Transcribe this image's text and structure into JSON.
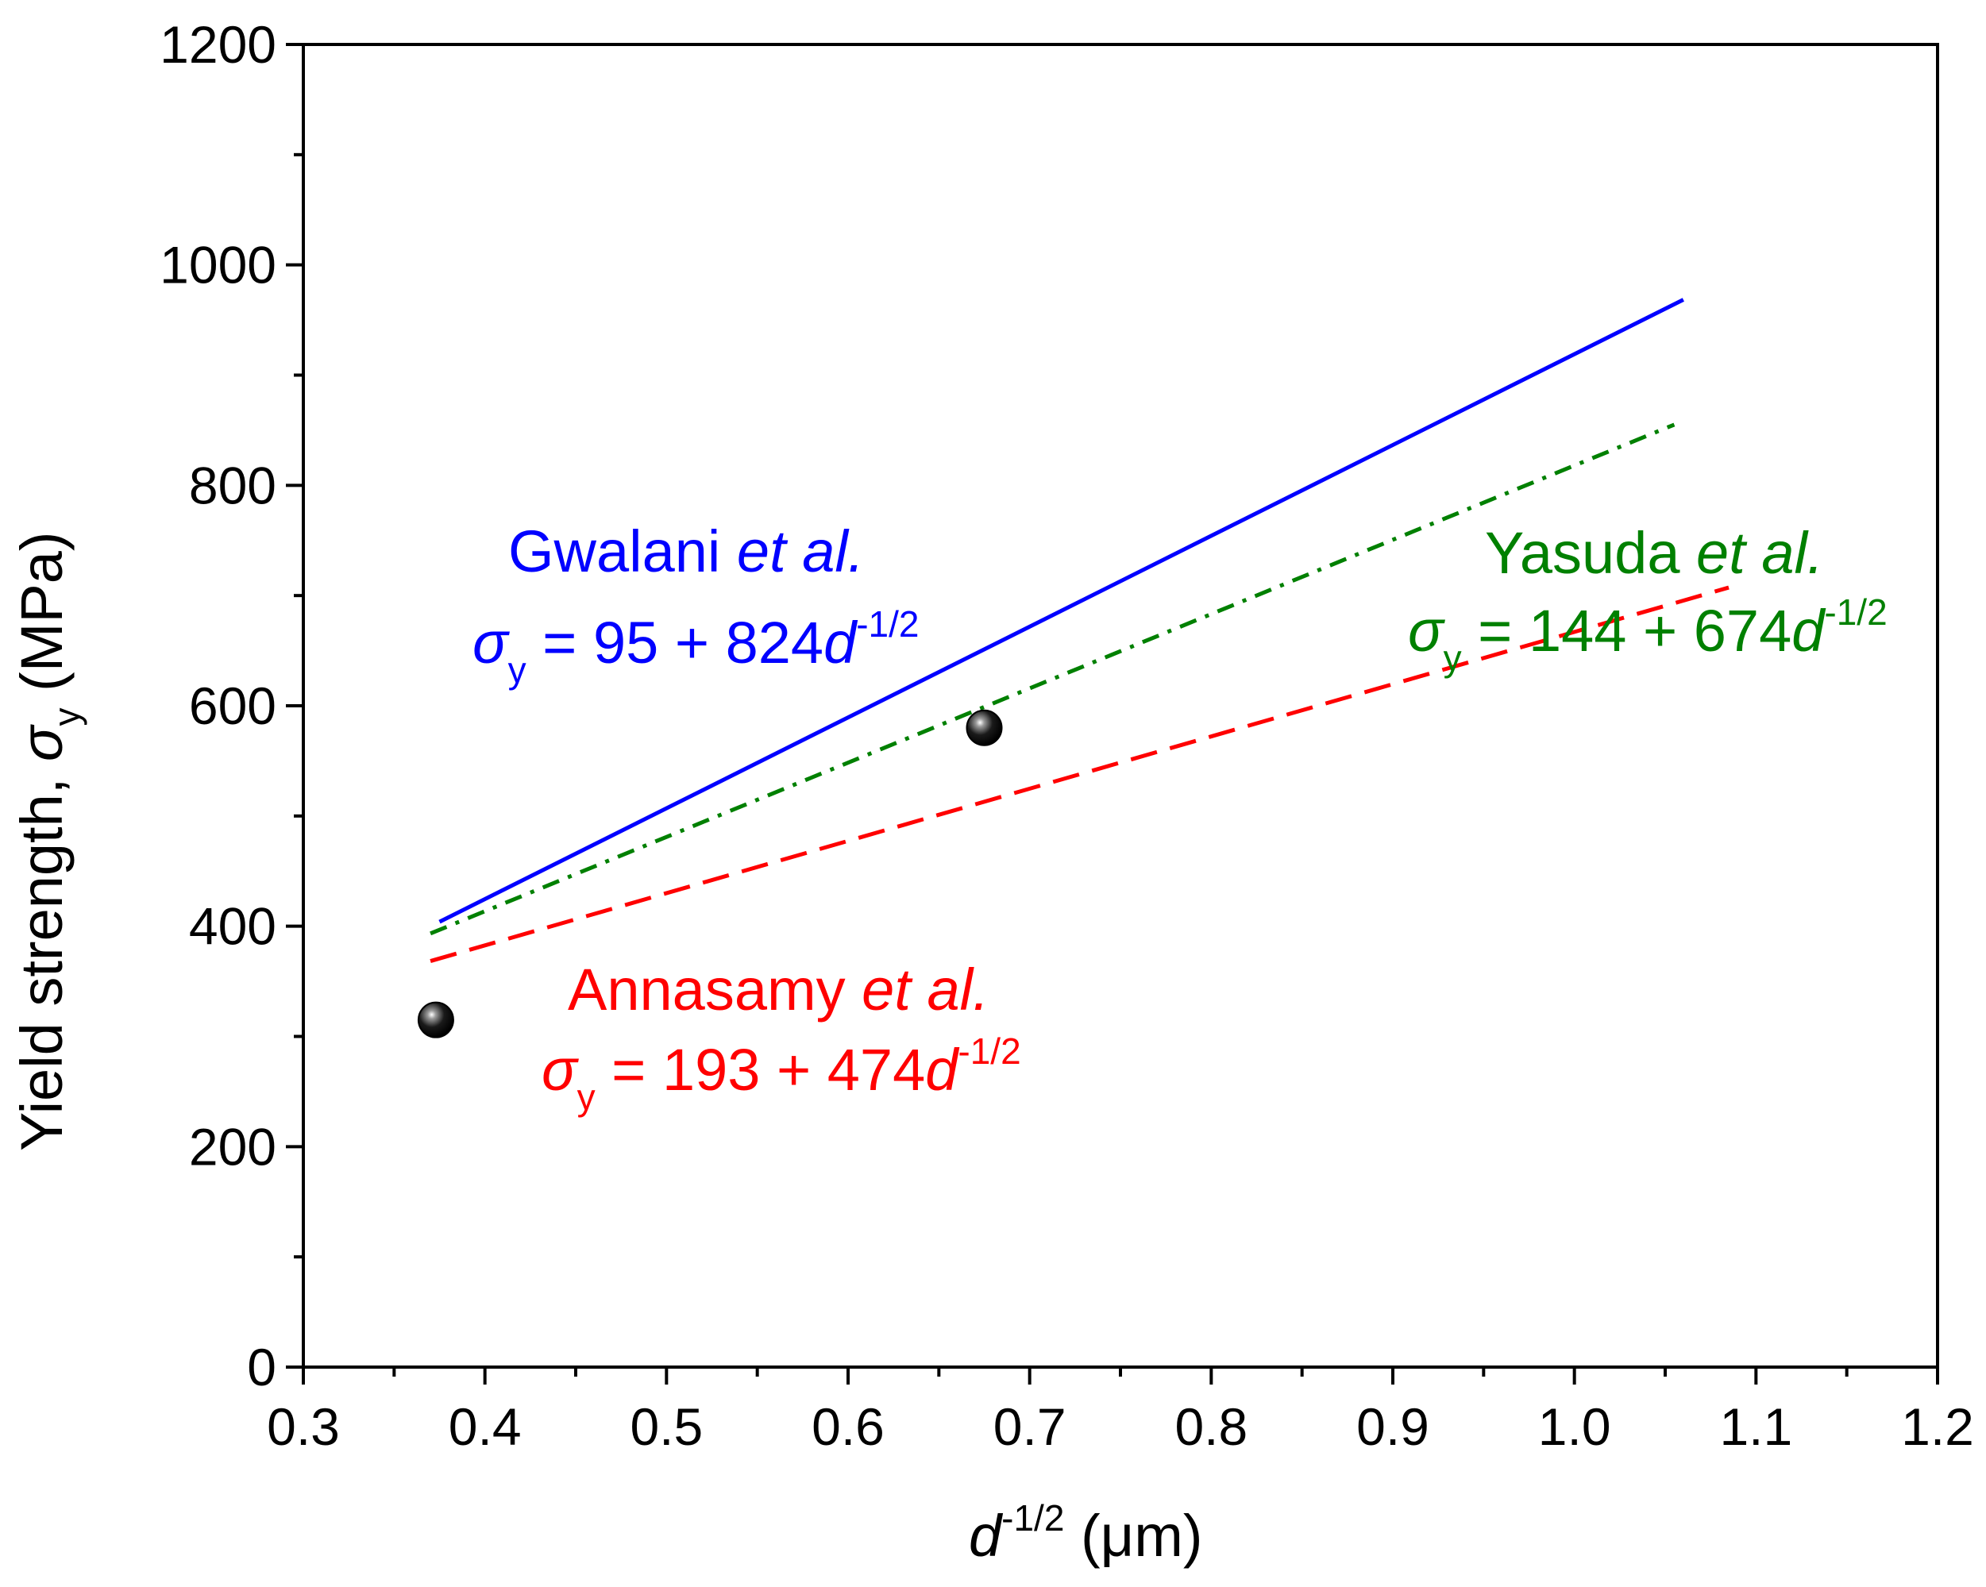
{
  "chart_data": {
    "type": "line",
    "title": "",
    "xlabel": {
      "main": "d",
      "sup": "-1/2",
      "unit": " (μm)"
    },
    "ylabel": {
      "main": "Yield strength, ",
      "sigma": "σ",
      "sub": "y",
      "unit": " (MPa)"
    },
    "xlim": [
      0.3,
      1.2
    ],
    "ylim": [
      0,
      1200
    ],
    "xticks": [
      "0.3",
      "0.4",
      "0.5",
      "0.6",
      "0.7",
      "0.8",
      "0.9",
      "1.0",
      "1.1",
      "1.2"
    ],
    "yticks": [
      "0",
      "200",
      "400",
      "600",
      "800",
      "1000",
      "1200"
    ],
    "xtick_values": [
      0.3,
      0.4,
      0.5,
      0.6,
      0.7,
      0.8,
      0.9,
      1.0,
      1.1,
      1.2
    ],
    "ytick_values": [
      0,
      200,
      400,
      600,
      800,
      1000,
      1200
    ],
    "x_minor_step": 0.05,
    "y_minor_step": 100,
    "grid": false,
    "series": [
      {
        "id": "gwalani",
        "name": "Gwalani",
        "name_suffix": " et al.",
        "style": "solid",
        "color": "#0000ff",
        "intercept": 95,
        "slope": 824,
        "x_range": [
          0.375,
          1.06
        ],
        "eq_sigma": "σ",
        "eq_sub": "y",
        "eq_text": " = 95 + 824",
        "eq_d": "d",
        "eq_sup": "-1/2"
      },
      {
        "id": "yasuda",
        "name": "Yasuda",
        "name_suffix": " et al.",
        "style": "dashdot",
        "color": "#008000",
        "intercept": 144,
        "slope": 674,
        "x_range": [
          0.37,
          1.055
        ],
        "eq_sigma": "σ",
        "eq_sub": "y",
        "eq_text": " = 144 + 674",
        "eq_d": "d",
        "eq_sup": "-1/2"
      },
      {
        "id": "annasamy",
        "name": "Annasamy",
        "name_suffix": " et al.",
        "style": "dashed",
        "color": "#ff0000",
        "intercept": 193,
        "slope": 474,
        "x_range": [
          0.37,
          1.085
        ],
        "eq_sigma": "σ",
        "eq_sub": "y",
        "eq_text": " = 193 + 474",
        "eq_d": "d",
        "eq_sup": "-1/2"
      }
    ],
    "points": [
      {
        "x": 0.373,
        "y": 315
      },
      {
        "x": 0.675,
        "y": 580
      }
    ]
  }
}
